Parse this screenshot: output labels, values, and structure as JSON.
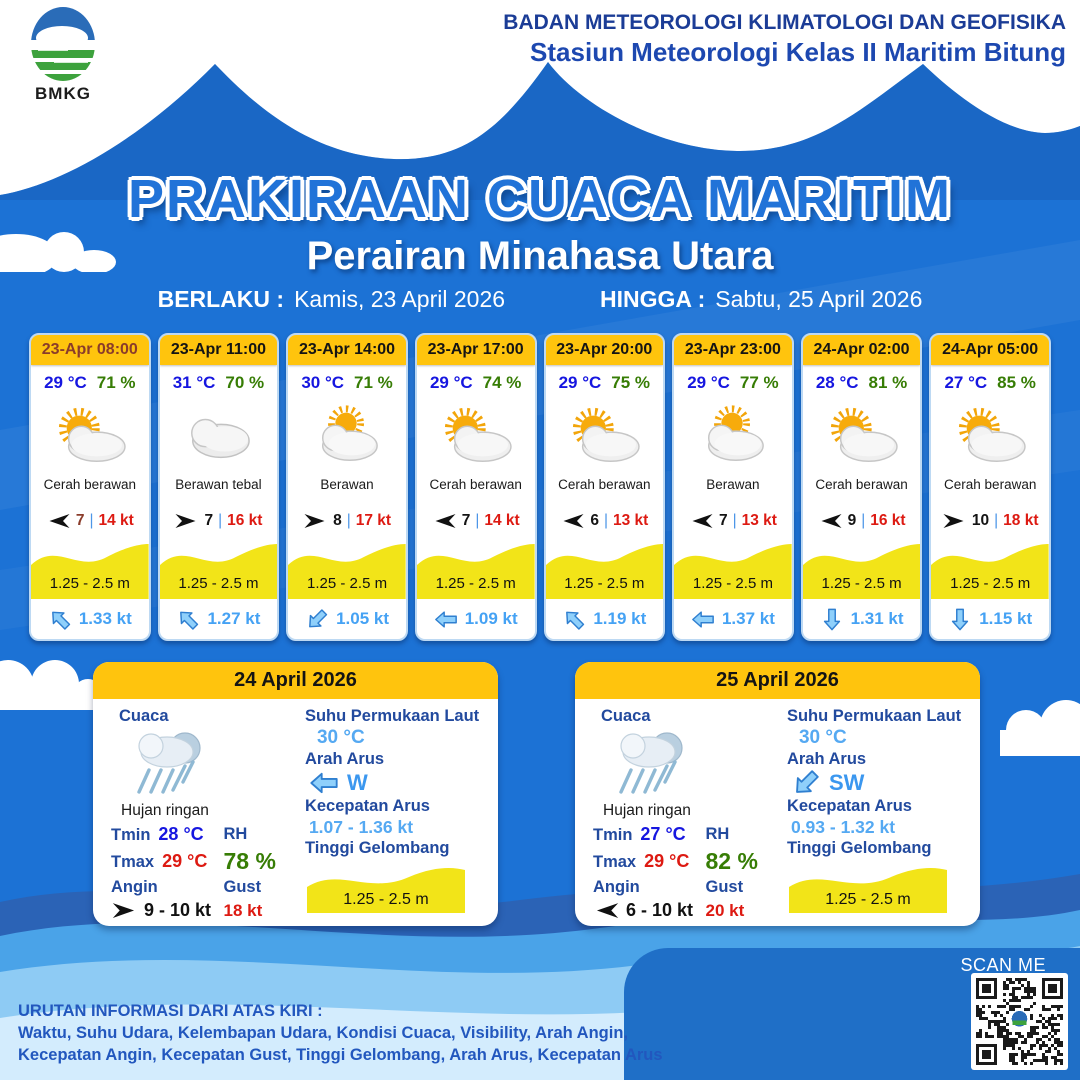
{
  "org": {
    "line1": "BADAN METEOROLOGI KLIMATOLOGI DAN GEOFISIKA",
    "line2": "Stasiun Meteorologi Kelas II Maritim Bitung",
    "logo": "BMKG"
  },
  "title": {
    "main": "PRAKIRAAN CUACA MARITIM",
    "area": "Perairan Minahasa Utara",
    "from_label": "BERLAKU :",
    "from_value": "Kamis, 23 April 2026",
    "to_label": "HINGGA :",
    "to_value": "Sabtu, 25 April 2026"
  },
  "labels": {
    "sep": "|"
  },
  "hourly": [
    {
      "time": "23-Apr 08:00",
      "temp": "29 °C",
      "rh": "71 %",
      "cond": "Cerah berawan",
      "icon": "sun-cloud",
      "vis": "7",
      "wind": "14 kt",
      "wave": "1.25 - 2.5 m",
      "current": "1.33 kt",
      "wind_rot": 0,
      "cur_rot": 45,
      "highlight": true
    },
    {
      "time": "23-Apr 11:00",
      "temp": "31 °C",
      "rh": "70 %",
      "cond": "Berawan tebal",
      "icon": "cloud-thick",
      "vis": "7",
      "wind": "16 kt",
      "wave": "1.25 - 2.5 m",
      "current": "1.27 kt",
      "wind_rot": 180,
      "cur_rot": 45,
      "highlight": false
    },
    {
      "time": "23-Apr 14:00",
      "temp": "30 °C",
      "rh": "71 %",
      "cond": "Berawan",
      "icon": "cloud-sun",
      "vis": "8",
      "wind": "17 kt",
      "wave": "1.25 - 2.5 m",
      "current": "1.05 kt",
      "wind_rot": 180,
      "cur_rot": -45,
      "highlight": false
    },
    {
      "time": "23-Apr 17:00",
      "temp": "29 °C",
      "rh": "74 %",
      "cond": "Cerah berawan",
      "icon": "sun-cloud",
      "vis": "7",
      "wind": "14 kt",
      "wave": "1.25 - 2.5 m",
      "current": "1.09 kt",
      "wind_rot": 0,
      "cur_rot": 0,
      "highlight": false
    },
    {
      "time": "23-Apr 20:00",
      "temp": "29 °C",
      "rh": "75 %",
      "cond": "Cerah berawan",
      "icon": "sun-cloud",
      "vis": "6",
      "wind": "13 kt",
      "wave": "1.25 - 2.5 m",
      "current": "1.19 kt",
      "wind_rot": 0,
      "cur_rot": 45,
      "highlight": false
    },
    {
      "time": "23-Apr 23:00",
      "temp": "29 °C",
      "rh": "77 %",
      "cond": "Berawan",
      "icon": "cloud-sun",
      "vis": "7",
      "wind": "13 kt",
      "wave": "1.25 - 2.5 m",
      "current": "1.37 kt",
      "wind_rot": 0,
      "cur_rot": 0,
      "highlight": false
    },
    {
      "time": "24-Apr 02:00",
      "temp": "28 °C",
      "rh": "81 %",
      "cond": "Cerah berawan",
      "icon": "sun-cloud",
      "vis": "9",
      "wind": "16 kt",
      "wave": "1.25 - 2.5 m",
      "current": "1.31 kt",
      "wind_rot": 0,
      "cur_rot": -90,
      "highlight": false
    },
    {
      "time": "24-Apr 05:00",
      "temp": "27 °C",
      "rh": "85 %",
      "cond": "Cerah berawan",
      "icon": "sun-cloud",
      "vis": "10",
      "wind": "18 kt",
      "wave": "1.25 - 2.5 m",
      "current": "1.15 kt",
      "wind_rot": 180,
      "cur_rot": -90,
      "highlight": false
    }
  ],
  "daily_labels": {
    "cuaca": "Cuaca",
    "tmin": "Tmin",
    "tmax": "Tmax",
    "rh": "RH",
    "angin": "Angin",
    "gust": "Gust",
    "sst": "Suhu Permukaan Laut",
    "arah_arus": "Arah Arus",
    "kecepatan_arus": "Kecepatan Arus",
    "tinggi_gelombang": "Tinggi Gelombang"
  },
  "daily": [
    {
      "date": "24 April 2026",
      "cond": "Hujan ringan",
      "tmin": "28 °C",
      "tmax": "29 °C",
      "rh": "78 %",
      "wind": "9 - 10 kt",
      "gust": "18 kt",
      "sst": "30 °C",
      "cur_dir": "W",
      "cur_speed": "1.07 - 1.36 kt",
      "wave": "1.25 - 2.5 m",
      "wind_rot": 180,
      "cur_rot": 0
    },
    {
      "date": "25 April 2026",
      "cond": "Hujan ringan",
      "tmin": "27 °C",
      "tmax": "29 °C",
      "rh": "82 %",
      "wind": "6 - 10 kt",
      "gust": "20 kt",
      "sst": "30 °C",
      "cur_dir": "SW",
      "cur_speed": "0.93 - 1.32 kt",
      "wave": "1.25 - 2.5 m",
      "wind_rot": 0,
      "cur_rot": -45
    }
  ],
  "footer": {
    "line1": "URUTAN INFORMASI DARI ATAS KIRI :",
    "line2": "Waktu, Suhu Udara, Kelembapan Udara, Kondisi Cuaca, Visibility, Arah Angin,",
    "line3": "Kecepatan Angin, Kecepatan Gust, Tinggi Gelombang, Arah Arus, Kecepatan Arus"
  },
  "scan": {
    "label": "SCAN ME"
  },
  "colors": {
    "background_blue": "#1c72d5",
    "header_yellow": "#ffc40d",
    "wave_yellow": "#f2e418",
    "temp_blue": "#1616e0",
    "humidity_green": "#377d05",
    "alert_red": "#dd1a12",
    "maroon_highlight": "#8a3c2b",
    "current_blue": "#45a2f4",
    "label_navy": "#224a9e"
  }
}
